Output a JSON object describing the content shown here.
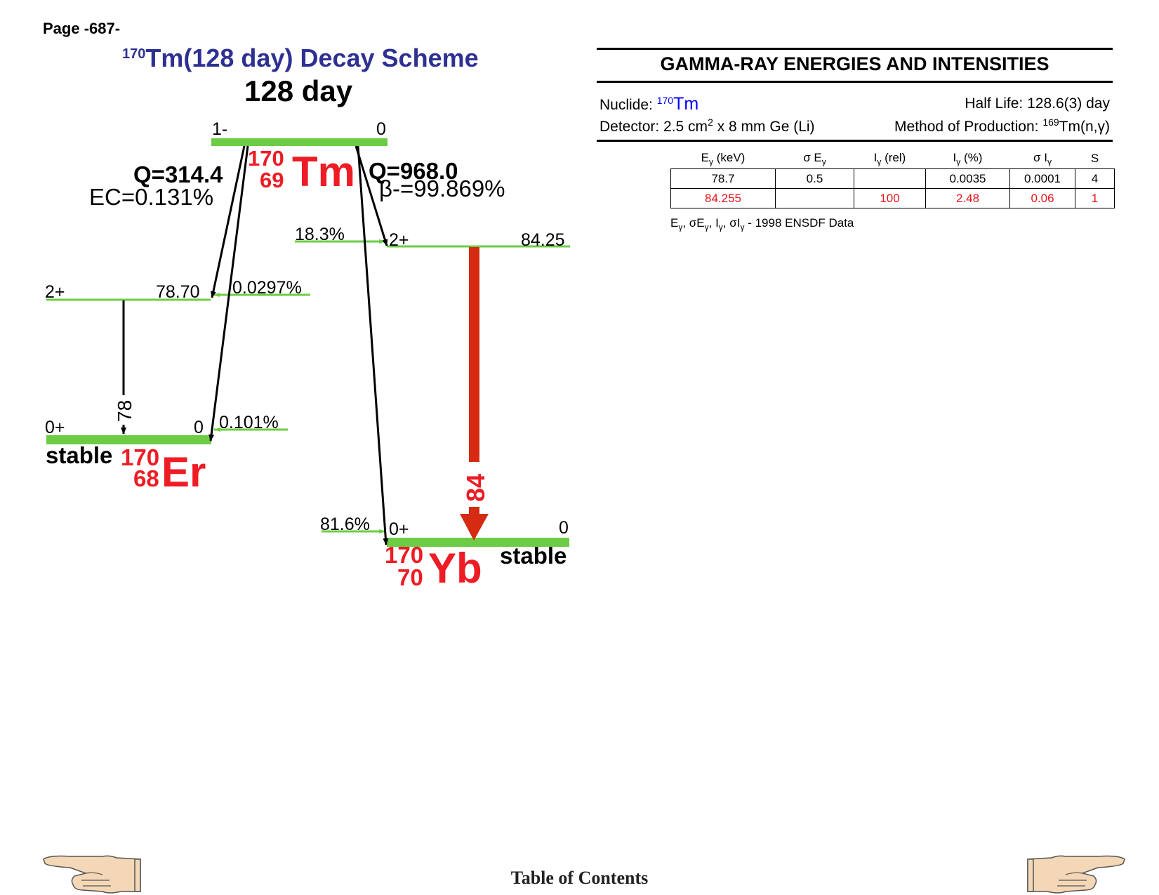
{
  "page_number": "Page -687-",
  "title": {
    "mass": "170",
    "rest": "Tm(128 day) Decay Scheme"
  },
  "parent_half_life": "128 day",
  "parent": {
    "mass": "170",
    "z": "69",
    "symbol": "Tm",
    "spin": "1-",
    "energy": "0"
  },
  "ec_branch": {
    "q": "Q=314.4",
    "label": "EC=0.131%"
  },
  "beta_branch": {
    "q": "Q=968.0",
    "label": "β-=99.869%"
  },
  "er": {
    "mass": "170",
    "z": "68",
    "symbol": "Er",
    "stable": "stable",
    "levels": [
      {
        "spin": "2+",
        "energy": "78.70",
        "feed": "0.0297%"
      },
      {
        "spin": "0+",
        "energy": "0",
        "feed": "0.101%"
      }
    ],
    "gamma": "78"
  },
  "yb": {
    "mass": "170",
    "z": "70",
    "symbol": "Yb",
    "stable": "stable",
    "levels": [
      {
        "spin": "2+",
        "energy": "84.25",
        "feed": "18.3%"
      },
      {
        "spin": "0+",
        "energy": "0",
        "feed": "81.6%"
      }
    ],
    "gamma": "84"
  },
  "colors": {
    "level": "#6ccd45",
    "red": "#ee1c25",
    "gamma_red": "#d42b12",
    "title_blue": "#2e3192"
  },
  "gamma_table": {
    "header": "GAMMA-RAY ENERGIES AND INTENSITIES",
    "nuclide_label": "Nuclide: ",
    "nuclide_mass": "170",
    "nuclide_symbol": "Tm",
    "half_life": "Half Life: 128.6(3) day",
    "detector_pre": "Detector: 2.5 cm",
    "detector_sup": "2",
    "detector_post": " x 8 mm Ge (Li)",
    "production_pre": "Method of Production: ",
    "production_sup": "169",
    "production_post": "Tm(n,γ)",
    "columns": [
      {
        "main": "E",
        "sub": "γ",
        "post": " (keV)"
      },
      {
        "main": "σ E",
        "sub": "γ",
        "post": ""
      },
      {
        "main": "I",
        "sub": "γ",
        "post": " (rel)"
      },
      {
        "main": "I",
        "sub": "γ",
        "post": " (%)"
      },
      {
        "main": "σ I",
        "sub": "γ",
        "post": ""
      },
      {
        "main": "S",
        "sub": "",
        "post": ""
      }
    ],
    "rows": [
      {
        "energy": "78.7",
        "sigma_e": "0.5",
        "i_rel": "",
        "i_pct": "0.0035",
        "sigma_i": "0.0001",
        "s": "4",
        "highlight": false
      },
      {
        "energy": "84.255",
        "sigma_e": "",
        "i_rel": "100",
        "i_pct": "2.48",
        "sigma_i": "0.06",
        "s": "1",
        "highlight": true
      }
    ],
    "footnote": {
      "source": "1998 ENSDF Data"
    }
  },
  "footer": {
    "toc": "Table of Contents"
  },
  "icons": {
    "left": "pointing-hand-left-icon",
    "right": "pointing-hand-right-icon"
  }
}
